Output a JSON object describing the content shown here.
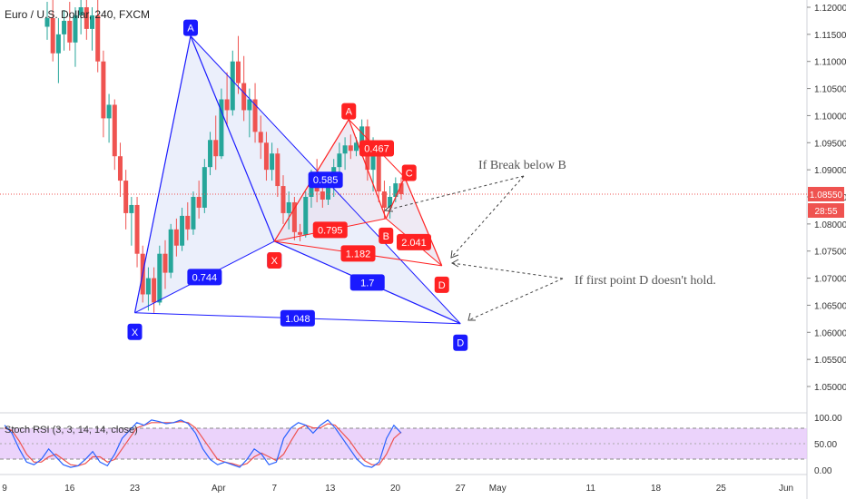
{
  "symbol_title": "Euro / U.S. Dollar, 240, FXCM",
  "indicator_label": "Stoch RSI (3, 3, 14, 14, close)",
  "price_tag": "1.08550",
  "countdown_tag": "28:55",
  "colors": {
    "bull": "#26a69a",
    "bear": "#ef5350",
    "blue_pattern": "#1a1aff",
    "red_pattern": "#ff2222",
    "blue_fill": "#e3e8fa",
    "red_fill": "#e8e1f0",
    "stoch_band": "#e6c8fa",
    "stoch_k": "#2962ff",
    "stoch_d": "#ef5350"
  },
  "annotations": [
    {
      "id": "break-b",
      "text": "If Break below B"
    },
    {
      "id": "first-d",
      "text": "If first point D doesn't hold."
    }
  ],
  "chart_data": {
    "type": "candlestick",
    "title": "Euro / U.S. Dollar, 240, FXCM",
    "price_axis_ticks": [
      "1.12000",
      "1.11500",
      "1.11000",
      "1.10500",
      "1.10000",
      "1.09500",
      "1.09000",
      "1.08500",
      "1.08000",
      "1.07500",
      "1.07000",
      "1.06500",
      "1.06000",
      "1.05500",
      "1.05000"
    ],
    "time_axis_ticks": [
      "9",
      "16",
      "23",
      "Apr",
      "7",
      "13",
      "20",
      "27",
      "May",
      "11",
      "18",
      "25",
      "Jun"
    ],
    "ylim": [
      1.0448,
      1.1228
    ],
    "current_price": 1.0855,
    "patterns": [
      {
        "name": "blue",
        "points": [
          {
            "label": "X",
            "date": "Mar 23",
            "price": 1.0636
          },
          {
            "label": "A",
            "date": "Mar 29",
            "price": 1.1147
          },
          {
            "label": "X",
            "date": "Apr 7",
            "price": 1.0768
          },
          {
            "label": "D",
            "date": "Apr 27",
            "price": 1.0616
          }
        ],
        "ratios": [
          "0.585",
          "0.744",
          "1.7",
          "1.048"
        ]
      },
      {
        "name": "red",
        "points": [
          {
            "label": "X",
            "date": "Apr 7",
            "price": 1.0768
          },
          {
            "label": "A",
            "date": "Apr 15",
            "price": 1.0993
          },
          {
            "label": "B",
            "date": "Apr 19",
            "price": 1.081
          },
          {
            "label": "C",
            "date": "Apr 21",
            "price": 1.0886
          },
          {
            "label": "D",
            "date": "Apr 25",
            "price": 1.0723
          }
        ],
        "ratios": [
          "0.467",
          "0.795",
          "2.041",
          "1.182"
        ]
      }
    ],
    "candles": [
      {
        "o": 1.1164,
        "h": 1.121,
        "l": 1.114,
        "c": 1.118
      },
      {
        "o": 1.118,
        "h": 1.1215,
        "l": 1.11,
        "c": 1.1115
      },
      {
        "o": 1.1115,
        "h": 1.118,
        "l": 1.106,
        "c": 1.115
      },
      {
        "o": 1.115,
        "h": 1.1195,
        "l": 1.112,
        "c": 1.1175
      },
      {
        "o": 1.1175,
        "h": 1.121,
        "l": 1.112,
        "c": 1.1135
      },
      {
        "o": 1.1135,
        "h": 1.12,
        "l": 1.109,
        "c": 1.1185
      },
      {
        "o": 1.1185,
        "h": 1.123,
        "l": 1.115,
        "c": 1.12
      },
      {
        "o": 1.12,
        "h": 1.123,
        "l": 1.114,
        "c": 1.116
      },
      {
        "o": 1.116,
        "h": 1.12,
        "l": 1.112,
        "c": 1.1185
      },
      {
        "o": 1.1185,
        "h": 1.1225,
        "l": 1.108,
        "c": 1.11
      },
      {
        "o": 1.11,
        "h": 1.112,
        "l": 1.096,
        "c": 1.0995
      },
      {
        "o": 1.0995,
        "h": 1.104,
        "l": 1.095,
        "c": 1.102
      },
      {
        "o": 1.102,
        "h": 1.103,
        "l": 1.09,
        "c": 1.0925
      },
      {
        "o": 1.0925,
        "h": 1.095,
        "l": 1.085,
        "c": 1.088
      },
      {
        "o": 1.088,
        "h": 1.09,
        "l": 1.079,
        "c": 1.082
      },
      {
        "o": 1.082,
        "h": 1.085,
        "l": 1.076,
        "c": 1.0835
      },
      {
        "o": 1.0835,
        "h": 1.085,
        "l": 1.072,
        "c": 1.0745
      },
      {
        "o": 1.0745,
        "h": 1.076,
        "l": 1.0655,
        "c": 1.067
      },
      {
        "o": 1.067,
        "h": 1.072,
        "l": 1.064,
        "c": 1.07
      },
      {
        "o": 1.07,
        "h": 1.072,
        "l": 1.0636,
        "c": 1.0655
      },
      {
        "o": 1.0655,
        "h": 1.076,
        "l": 1.065,
        "c": 1.0745
      },
      {
        "o": 1.0745,
        "h": 1.077,
        "l": 1.068,
        "c": 1.071
      },
      {
        "o": 1.071,
        "h": 1.08,
        "l": 1.07,
        "c": 1.079
      },
      {
        "o": 1.079,
        "h": 1.081,
        "l": 1.074,
        "c": 1.076
      },
      {
        "o": 1.076,
        "h": 1.083,
        "l": 1.075,
        "c": 1.0815
      },
      {
        "o": 1.0815,
        "h": 1.084,
        "l": 1.077,
        "c": 1.079
      },
      {
        "o": 1.079,
        "h": 1.086,
        "l": 1.078,
        "c": 1.085
      },
      {
        "o": 1.085,
        "h": 1.088,
        "l": 1.081,
        "c": 1.083
      },
      {
        "o": 1.083,
        "h": 1.092,
        "l": 1.082,
        "c": 1.0905
      },
      {
        "o": 1.0905,
        "h": 1.097,
        "l": 1.089,
        "c": 1.0955
      },
      {
        "o": 1.0955,
        "h": 1.1,
        "l": 1.09,
        "c": 1.0925
      },
      {
        "o": 1.0925,
        "h": 1.105,
        "l": 1.092,
        "c": 1.103
      },
      {
        "o": 1.103,
        "h": 1.108,
        "l": 1.098,
        "c": 1.101
      },
      {
        "o": 1.101,
        "h": 1.112,
        "l": 1.1,
        "c": 1.11
      },
      {
        "o": 1.11,
        "h": 1.1147,
        "l": 1.104,
        "c": 1.106
      },
      {
        "o": 1.106,
        "h": 1.111,
        "l": 1.099,
        "c": 1.101
      },
      {
        "o": 1.101,
        "h": 1.105,
        "l": 1.096,
        "c": 1.103
      },
      {
        "o": 1.103,
        "h": 1.106,
        "l": 1.095,
        "c": 1.097
      },
      {
        "o": 1.097,
        "h": 1.1,
        "l": 1.092,
        "c": 1.095
      },
      {
        "o": 1.095,
        "h": 1.097,
        "l": 1.088,
        "c": 1.09
      },
      {
        "o": 1.09,
        "h": 1.095,
        "l": 1.088,
        "c": 1.093
      },
      {
        "o": 1.093,
        "h": 1.094,
        "l": 1.085,
        "c": 1.087
      },
      {
        "o": 1.087,
        "h": 1.089,
        "l": 1.08,
        "c": 1.082
      },
      {
        "o": 1.082,
        "h": 1.086,
        "l": 1.079,
        "c": 1.084
      },
      {
        "o": 1.084,
        "h": 1.085,
        "l": 1.077,
        "c": 1.0785
      },
      {
        "o": 1.0785,
        "h": 1.08,
        "l": 1.0768,
        "c": 1.078
      },
      {
        "o": 1.078,
        "h": 1.086,
        "l": 1.0775,
        "c": 1.085
      },
      {
        "o": 1.085,
        "h": 1.09,
        "l": 1.083,
        "c": 1.088
      },
      {
        "o": 1.088,
        "h": 1.092,
        "l": 1.084,
        "c": 1.086
      },
      {
        "o": 1.086,
        "h": 1.088,
        "l": 1.083,
        "c": 1.0845
      },
      {
        "o": 1.0845,
        "h": 1.088,
        "l": 1.0835,
        "c": 1.087
      },
      {
        "o": 1.087,
        "h": 1.092,
        "l": 1.085,
        "c": 1.0905
      },
      {
        "o": 1.0905,
        "h": 1.095,
        "l": 1.088,
        "c": 1.093
      },
      {
        "o": 1.093,
        "h": 1.096,
        "l": 1.09,
        "c": 1.0945
      },
      {
        "o": 1.0945,
        "h": 1.0965,
        "l": 1.092,
        "c": 1.0935
      },
      {
        "o": 1.0935,
        "h": 1.096,
        "l": 1.0925,
        "c": 1.095
      },
      {
        "o": 1.095,
        "h": 1.0993,
        "l": 1.094,
        "c": 1.098
      },
      {
        "o": 1.098,
        "h": 1.0993,
        "l": 1.088,
        "c": 1.09
      },
      {
        "o": 1.09,
        "h": 1.096,
        "l": 1.086,
        "c": 1.094
      },
      {
        "o": 1.094,
        "h": 1.095,
        "l": 1.084,
        "c": 1.086
      },
      {
        "o": 1.086,
        "h": 1.088,
        "l": 1.081,
        "c": 1.083
      },
      {
        "o": 1.083,
        "h": 1.087,
        "l": 1.081,
        "c": 1.085
      },
      {
        "o": 1.085,
        "h": 1.0886,
        "l": 1.084,
        "c": 1.0875
      },
      {
        "o": 1.0875,
        "h": 1.0886,
        "l": 1.0845,
        "c": 1.0855
      }
    ],
    "stoch_rsi": {
      "ylim": [
        0,
        100
      ],
      "ticks": [
        "100.00",
        "50.00",
        "0.00"
      ],
      "upper_band": 80,
      "lower_band": 20,
      "k": [
        85,
        70,
        40,
        15,
        10,
        20,
        40,
        25,
        10,
        5,
        8,
        20,
        35,
        15,
        8,
        30,
        60,
        75,
        90,
        85,
        95,
        92,
        88,
        90,
        95,
        88,
        70,
        40,
        20,
        10,
        15,
        10,
        5,
        20,
        40,
        30,
        10,
        15,
        60,
        80,
        90,
        85,
        70,
        85,
        95,
        80,
        60,
        40,
        20,
        8,
        5,
        15,
        60,
        85,
        70
      ],
      "d": [
        80,
        75,
        55,
        30,
        15,
        15,
        25,
        30,
        20,
        10,
        8,
        12,
        25,
        25,
        15,
        20,
        40,
        60,
        80,
        85,
        90,
        90,
        90,
        90,
        92,
        90,
        80,
        60,
        40,
        20,
        15,
        12,
        8,
        12,
        25,
        32,
        25,
        18,
        30,
        55,
        78,
        85,
        80,
        80,
        88,
        85,
        70,
        55,
        35,
        18,
        10,
        10,
        30,
        60,
        72
      ]
    }
  }
}
